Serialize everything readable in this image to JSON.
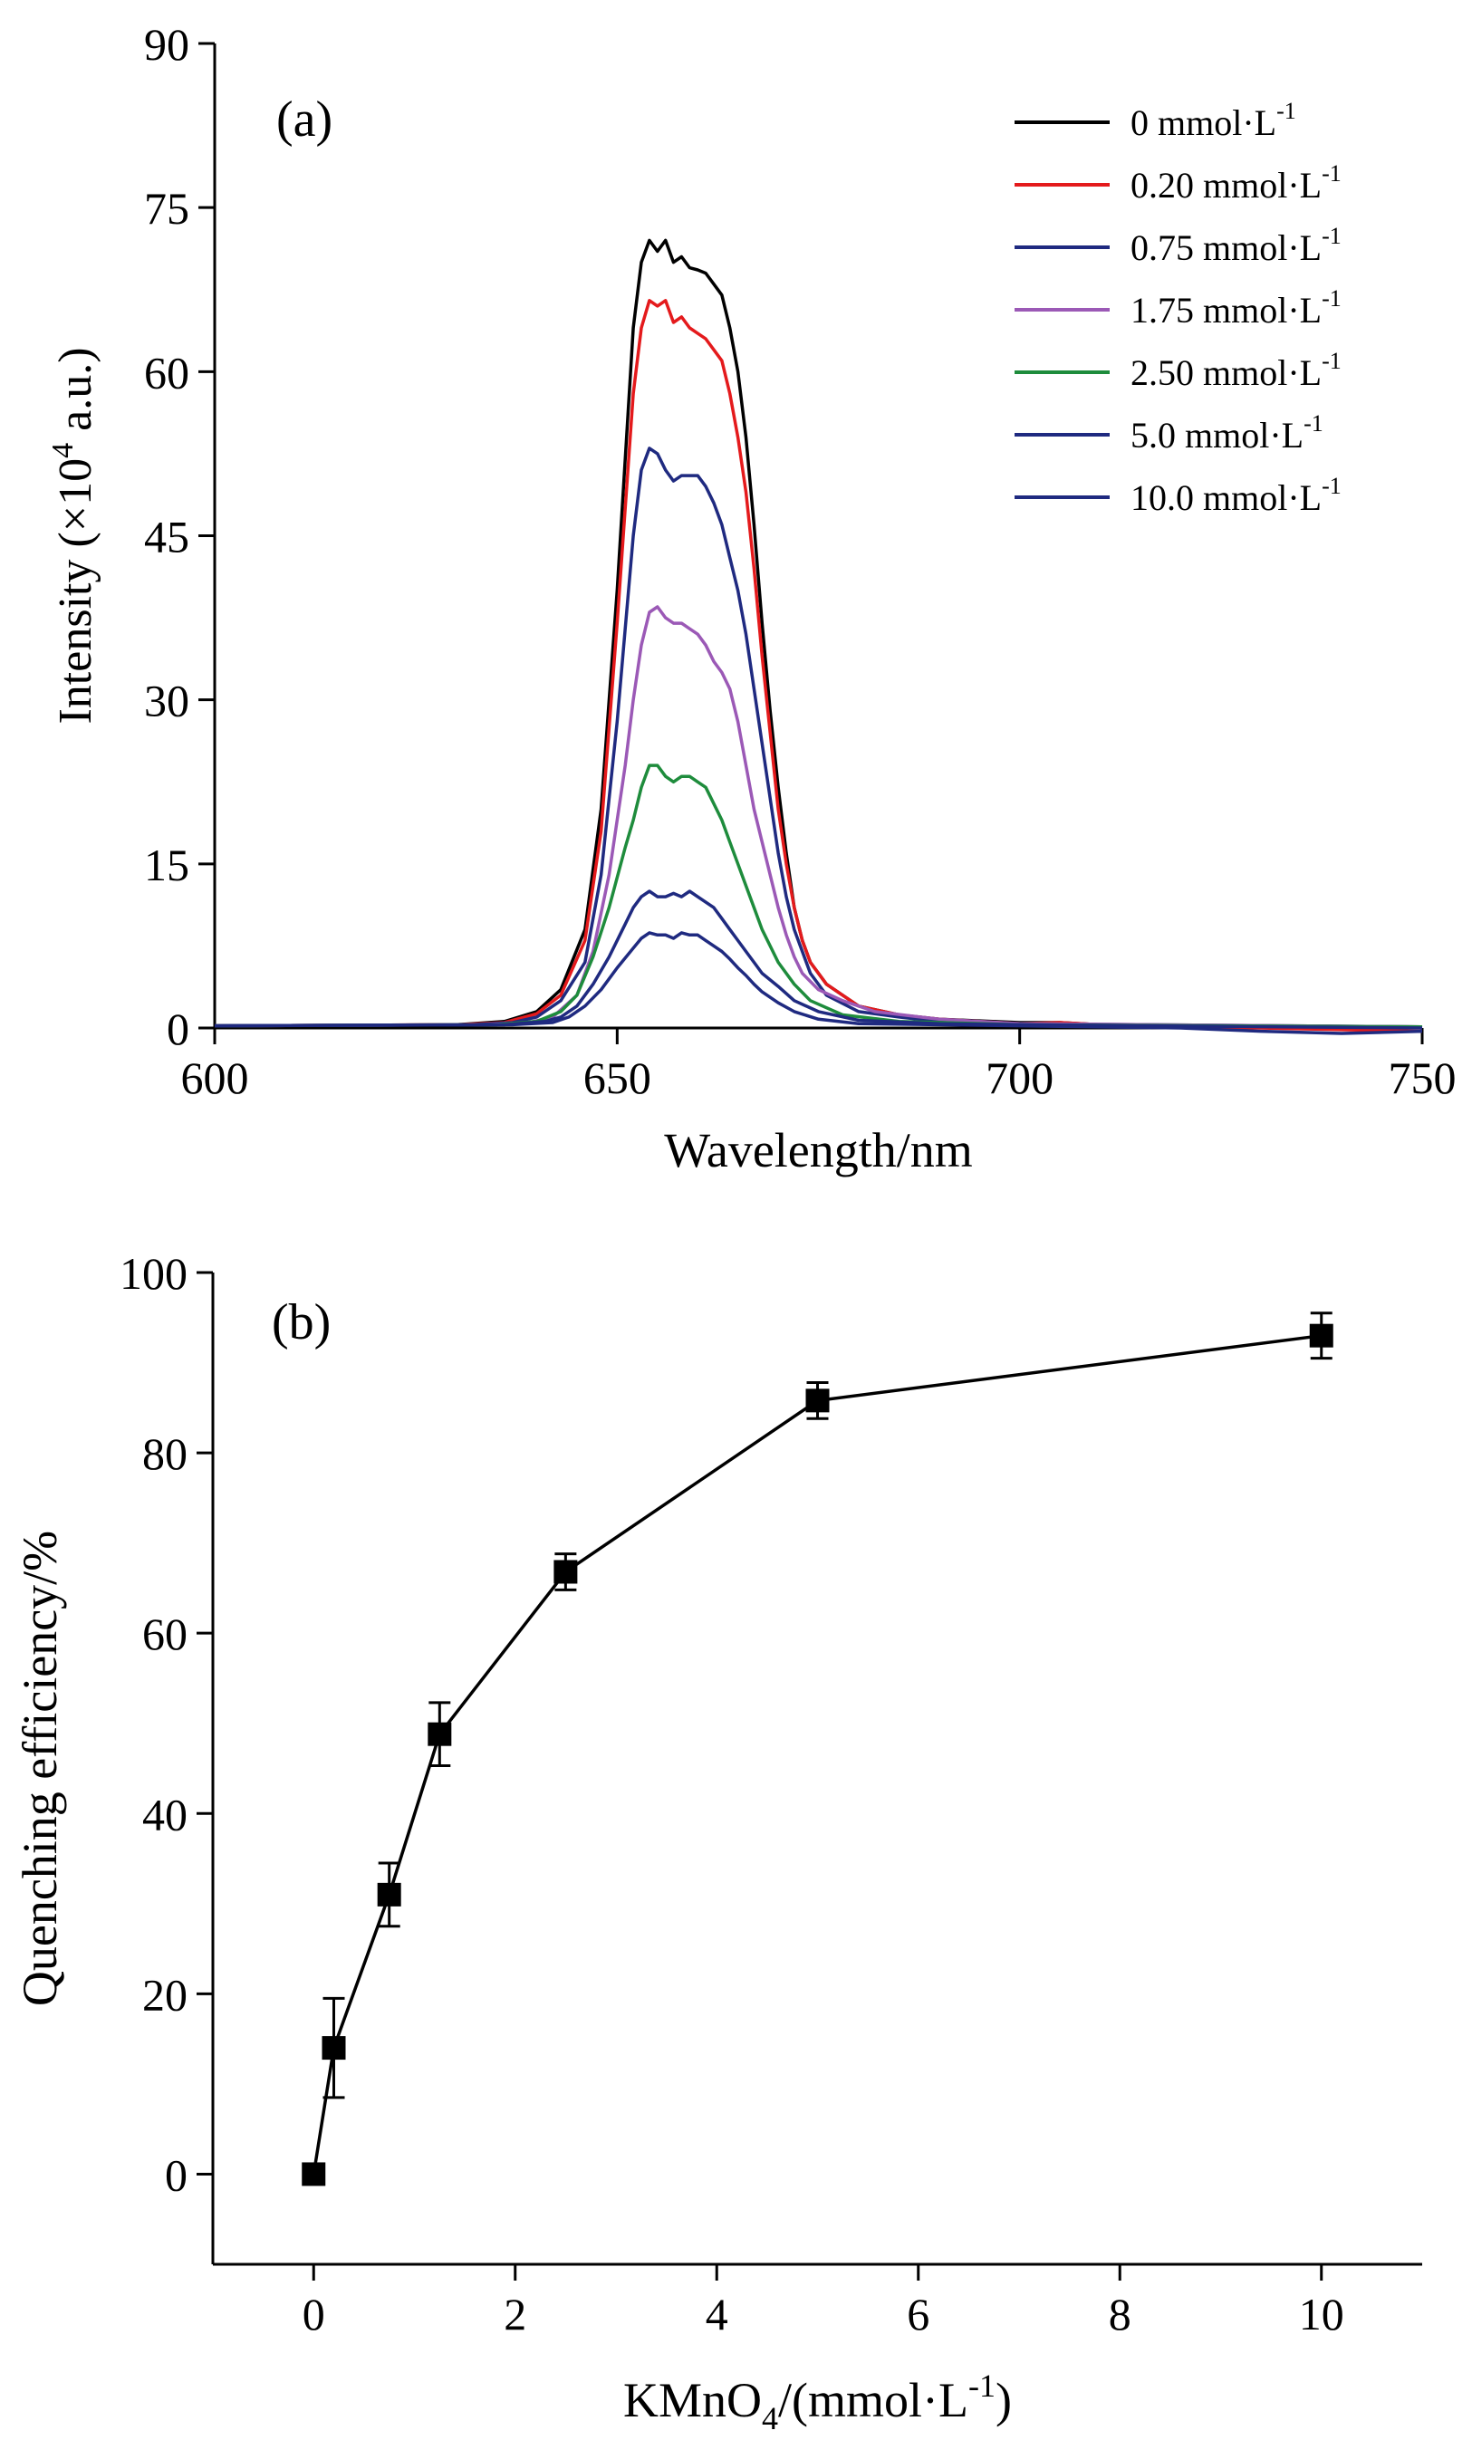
{
  "chart_data": [
    {
      "type": "line",
      "panel_label": "(a)",
      "xlabel": "Wavelength/nm",
      "ylabel_parts": [
        "Intensity (×10",
        "4",
        " a.u.)"
      ],
      "xlim": [
        600,
        750
      ],
      "ylim": [
        0,
        90
      ],
      "xticks": [
        600,
        650,
        700,
        750
      ],
      "yticks": [
        0,
        15,
        30,
        45,
        60,
        75,
        90
      ],
      "grid": false,
      "legend_position": "top-right",
      "series": [
        {
          "name": "0 mmol·L",
          "sup": "-1",
          "color": "#000000",
          "points": [
            [
              600,
              0.2
            ],
            [
              630,
              0.3
            ],
            [
              636,
              0.6
            ],
            [
              640,
              1.5
            ],
            [
              643,
              3.5
            ],
            [
              646,
              9
            ],
            [
              648,
              20
            ],
            [
              650,
              40
            ],
            [
              652,
              64
            ],
            [
              653,
              70
            ],
            [
              654,
              72
            ],
            [
              655,
              71
            ],
            [
              656,
              72
            ],
            [
              657,
              70
            ],
            [
              658,
              70.5
            ],
            [
              659,
              69.5
            ],
            [
              660,
              69.3
            ],
            [
              661,
              69
            ],
            [
              662,
              68
            ],
            [
              663,
              67
            ],
            [
              664,
              64
            ],
            [
              665,
              60
            ],
            [
              666,
              54
            ],
            [
              667,
              46
            ],
            [
              668,
              37
            ],
            [
              669,
              29
            ],
            [
              670,
              22
            ],
            [
              671,
              16
            ],
            [
              672,
              11
            ],
            [
              673,
              8
            ],
            [
              674,
              6
            ],
            [
              676,
              4
            ],
            [
              680,
              2
            ],
            [
              685,
              1.2
            ],
            [
              690,
              0.8
            ],
            [
              700,
              0.5
            ],
            [
              705,
              0.5
            ],
            [
              710,
              0.3
            ],
            [
              750,
              0.1
            ]
          ]
        },
        {
          "name": "0.20 mmol·L",
          "sup": "-1",
          "color": "#e41a1c",
          "points": [
            [
              600,
              0.2
            ],
            [
              630,
              0.3
            ],
            [
              636,
              0.5
            ],
            [
              640,
              1.3
            ],
            [
              643,
              3
            ],
            [
              646,
              8
            ],
            [
              648,
              18
            ],
            [
              650,
              37
            ],
            [
              652,
              58
            ],
            [
              653,
              64
            ],
            [
              654,
              66.5
            ],
            [
              655,
              66
            ],
            [
              656,
              66.5
            ],
            [
              657,
              64.5
            ],
            [
              658,
              65
            ],
            [
              659,
              64
            ],
            [
              660,
              63.5
            ],
            [
              661,
              63
            ],
            [
              662,
              62
            ],
            [
              663,
              61
            ],
            [
              664,
              58
            ],
            [
              665,
              54
            ],
            [
              666,
              49
            ],
            [
              667,
              42
            ],
            [
              668,
              34
            ],
            [
              669,
              27
            ],
            [
              670,
              20
            ],
            [
              671,
              15
            ],
            [
              672,
              11
            ],
            [
              673,
              8
            ],
            [
              674,
              6
            ],
            [
              676,
              4
            ],
            [
              680,
              2
            ],
            [
              685,
              1.2
            ],
            [
              690,
              0.8
            ],
            [
              700,
              0.4
            ],
            [
              705,
              0.5
            ],
            [
              710,
              0.3
            ],
            [
              750,
              -0.3
            ]
          ]
        },
        {
          "name": "0.75 mmol·L",
          "sup": "-1",
          "color": "#1f2a80",
          "points": [
            [
              600,
              0.2
            ],
            [
              632,
              0.3
            ],
            [
              637,
              0.5
            ],
            [
              640,
              1
            ],
            [
              643,
              2.5
            ],
            [
              646,
              6
            ],
            [
              648,
              14
            ],
            [
              650,
              28
            ],
            [
              652,
              45
            ],
            [
              653,
              51
            ],
            [
              654,
              53
            ],
            [
              655,
              52.5
            ],
            [
              656,
              51
            ],
            [
              657,
              50
            ],
            [
              658,
              50.5
            ],
            [
              659,
              50.5
            ],
            [
              660,
              50.5
            ],
            [
              661,
              49.5
            ],
            [
              662,
              48
            ],
            [
              663,
              46
            ],
            [
              664,
              43
            ],
            [
              665,
              40
            ],
            [
              666,
              36
            ],
            [
              667,
              31
            ],
            [
              668,
              26
            ],
            [
              669,
              21
            ],
            [
              670,
              16
            ],
            [
              671,
              12
            ],
            [
              672,
              9
            ],
            [
              673,
              7
            ],
            [
              674,
              5
            ],
            [
              676,
              3
            ],
            [
              680,
              1.5
            ],
            [
              685,
              1
            ],
            [
              690,
              0.6
            ],
            [
              700,
              0.4
            ],
            [
              750,
              0.1
            ]
          ]
        },
        {
          "name": "1.75 mmol·L",
          "sup": "-1",
          "color": "#9b59b6",
          "points": [
            [
              600,
              0.2
            ],
            [
              634,
              0.3
            ],
            [
              639,
              0.5
            ],
            [
              642,
              1
            ],
            [
              645,
              3
            ],
            [
              647,
              7
            ],
            [
              649,
              14
            ],
            [
              651,
              24
            ],
            [
              652,
              30
            ],
            [
              653,
              35
            ],
            [
              654,
              38
            ],
            [
              655,
              38.5
            ],
            [
              656,
              37.5
            ],
            [
              657,
              37
            ],
            [
              658,
              37
            ],
            [
              659,
              36.5
            ],
            [
              660,
              36
            ],
            [
              661,
              35
            ],
            [
              662,
              33.5
            ],
            [
              663,
              32.5
            ],
            [
              664,
              31
            ],
            [
              665,
              28
            ],
            [
              666,
              24
            ],
            [
              667,
              20
            ],
            [
              668,
              17
            ],
            [
              669,
              14
            ],
            [
              670,
              11
            ],
            [
              671,
              8.5
            ],
            [
              672,
              6.5
            ],
            [
              673,
              5
            ],
            [
              675,
              3.5
            ],
            [
              678,
              2.5
            ],
            [
              682,
              1.5
            ],
            [
              690,
              0.8
            ],
            [
              700,
              0.4
            ],
            [
              750,
              0.1
            ]
          ]
        },
        {
          "name": "2.50 mmol·L",
          "sup": "-1",
          "color": "#1e8c3c",
          "points": [
            [
              600,
              0.2
            ],
            [
              635,
              0.3
            ],
            [
              640,
              0.6
            ],
            [
              643,
              1.5
            ],
            [
              645,
              3
            ],
            [
              647,
              6.5
            ],
            [
              649,
              11
            ],
            [
              651,
              16.5
            ],
            [
              652,
              19
            ],
            [
              653,
              22
            ],
            [
              654,
              24
            ],
            [
              655,
              24
            ],
            [
              656,
              23
            ],
            [
              657,
              22.5
            ],
            [
              658,
              23
            ],
            [
              659,
              23
            ],
            [
              660,
              22.5
            ],
            [
              661,
              22
            ],
            [
              662,
              20.5
            ],
            [
              663,
              19
            ],
            [
              664,
              17
            ],
            [
              665,
              15
            ],
            [
              666,
              13
            ],
            [
              667,
              11
            ],
            [
              668,
              9
            ],
            [
              669,
              7.5
            ],
            [
              670,
              6
            ],
            [
              672,
              4
            ],
            [
              674,
              2.5
            ],
            [
              678,
              1.2
            ],
            [
              685,
              0.6
            ],
            [
              700,
              0.3
            ],
            [
              750,
              0.1
            ]
          ]
        },
        {
          "name": " 5.0 mmol·L",
          "sup": "-1",
          "color": "#1f2a80",
          "points": [
            [
              600,
              0.2
            ],
            [
              636,
              0.3
            ],
            [
              641,
              0.6
            ],
            [
              643,
              1
            ],
            [
              645,
              2
            ],
            [
              647,
              4
            ],
            [
              649,
              6.5
            ],
            [
              651,
              9.5
            ],
            [
              652,
              11
            ],
            [
              653,
              12
            ],
            [
              654,
              12.5
            ],
            [
              655,
              12
            ],
            [
              656,
              12
            ],
            [
              657,
              12.3
            ],
            [
              658,
              12
            ],
            [
              659,
              12.5
            ],
            [
              660,
              12
            ],
            [
              661,
              11.5
            ],
            [
              662,
              11
            ],
            [
              663,
              10
            ],
            [
              664,
              9
            ],
            [
              665,
              8
            ],
            [
              666,
              7
            ],
            [
              667,
              6
            ],
            [
              668,
              5
            ],
            [
              670,
              3.8
            ],
            [
              672,
              2.5
            ],
            [
              675,
              1.5
            ],
            [
              680,
              0.7
            ],
            [
              690,
              0.4
            ],
            [
              700,
              0.3
            ],
            [
              750,
              0
            ]
          ]
        },
        {
          "name": "10.0 mmol·L",
          "sup": "-1",
          "color": "#1f2a80",
          "points": [
            [
              600,
              0.2
            ],
            [
              637,
              0.3
            ],
            [
              642,
              0.5
            ],
            [
              644,
              1
            ],
            [
              646,
              2
            ],
            [
              648,
              3.5
            ],
            [
              650,
              5.5
            ],
            [
              652,
              7.3
            ],
            [
              653,
              8.2
            ],
            [
              654,
              8.7
            ],
            [
              655,
              8.5
            ],
            [
              656,
              8.5
            ],
            [
              657,
              8.2
            ],
            [
              658,
              8.7
            ],
            [
              659,
              8.5
            ],
            [
              660,
              8.5
            ],
            [
              661,
              8
            ],
            [
              662,
              7.5
            ],
            [
              663,
              7
            ],
            [
              664,
              6.3
            ],
            [
              665,
              5.5
            ],
            [
              666,
              4.8
            ],
            [
              667,
              4
            ],
            [
              668,
              3.3
            ],
            [
              670,
              2.3
            ],
            [
              672,
              1.5
            ],
            [
              675,
              0.8
            ],
            [
              680,
              0.4
            ],
            [
              700,
              0.2
            ],
            [
              720,
              0
            ],
            [
              730,
              -0.3
            ],
            [
              740,
              -0.5
            ],
            [
              750,
              -0.3
            ]
          ]
        }
      ]
    },
    {
      "type": "scatter",
      "panel_label": "(b)",
      "xlabel_parts": [
        "KMnO",
        "4",
        "/(mmol·L",
        "-1",
        ")"
      ],
      "ylabel": "Quenching efficiency/%",
      "xlim": [
        -1,
        11
      ],
      "ylim": [
        -10,
        100
      ],
      "xticks": [
        0,
        2,
        4,
        6,
        8,
        10
      ],
      "yticks": [
        0,
        20,
        40,
        60,
        80,
        100
      ],
      "grid": false,
      "connected": true,
      "x": [
        0,
        0.2,
        0.75,
        1.25,
        2.5,
        5,
        10
      ],
      "y": [
        0,
        14,
        31,
        48.8,
        66.8,
        85.8,
        93
      ],
      "error": [
        0,
        5.5,
        3.5,
        3.5,
        2,
        2,
        2.5
      ]
    }
  ]
}
